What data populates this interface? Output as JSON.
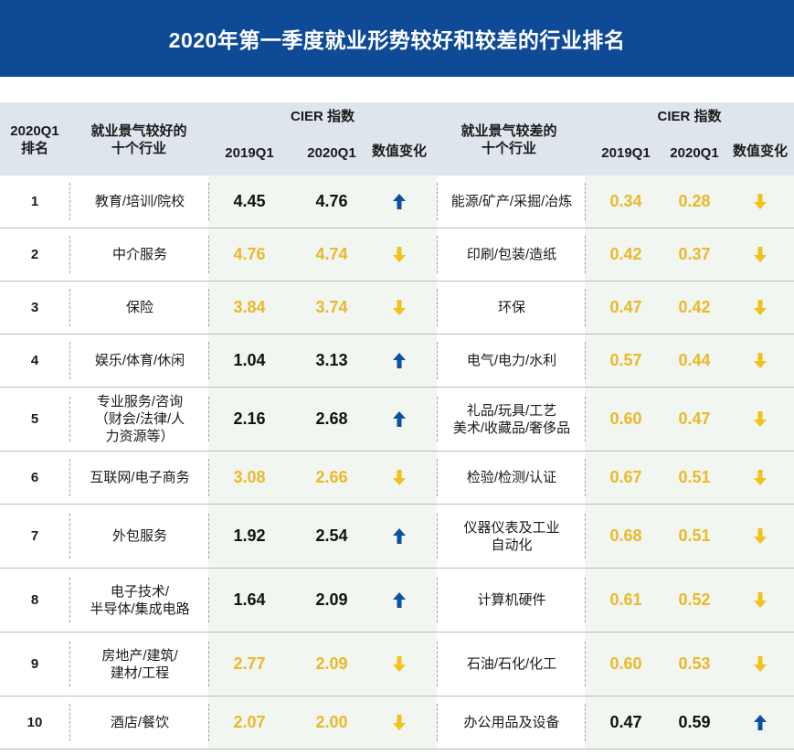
{
  "title": "2020年第一季度就业形势较好和较差的行业排名",
  "colors": {
    "header_blue": "#0f4a96",
    "gold": "#e9b92a",
    "dark_blue_arrow": "#0d4fa0",
    "yellow_arrow": "#f0c21c"
  },
  "header": {
    "rank_line1": "2020Q1",
    "rank_line2": "排名",
    "good_line1": "就业景气较好的",
    "good_line2": "十个行业",
    "cier_good": "CIER 指数",
    "y2019": "2019Q1",
    "y2020": "2020Q1",
    "change": "数值变化",
    "bad_line1": "就业景气较差的",
    "bad_line2": "十个行业",
    "cier_bad": "CIER 指数",
    "y2019b": "2019Q1",
    "y2020b": "2020Q1",
    "changeb": "数值变化"
  },
  "rows": [
    {
      "rank": "1",
      "good_lines": [
        "教育/培训/院校"
      ],
      "g19": "4.45",
      "g20": "4.76",
      "g_dir": "up",
      "g_gold": false,
      "bad_lines": [
        "能源/矿产/采掘/冶炼"
      ],
      "b19": "0.34",
      "b20": "0.28",
      "b_dir": "down",
      "b_gold": true
    },
    {
      "rank": "2",
      "good_lines": [
        "中介服务"
      ],
      "g19": "4.76",
      "g20": "4.74",
      "g_dir": "down",
      "g_gold": true,
      "bad_lines": [
        "印刷/包装/造纸"
      ],
      "b19": "0.42",
      "b20": "0.37",
      "b_dir": "down",
      "b_gold": true
    },
    {
      "rank": "3",
      "good_lines": [
        "保险"
      ],
      "g19": "3.84",
      "g20": "3.74",
      "g_dir": "down",
      "g_gold": true,
      "bad_lines": [
        "环保"
      ],
      "b19": "0.47",
      "b20": "0.42",
      "b_dir": "down",
      "b_gold": true
    },
    {
      "rank": "4",
      "good_lines": [
        "娱乐/体育/休闲"
      ],
      "g19": "1.04",
      "g20": "3.13",
      "g_dir": "up",
      "g_gold": false,
      "bad_lines": [
        "电气/电力/水利"
      ],
      "b19": "0.57",
      "b20": "0.44",
      "b_dir": "down",
      "b_gold": true
    },
    {
      "rank": "5",
      "good_lines": [
        "专业服务/咨询",
        "（财会/法律/人",
        "力资源等）"
      ],
      "g19": "2.16",
      "g20": "2.68",
      "g_dir": "up",
      "g_gold": false,
      "bad_lines": [
        "礼品/玩具/工艺",
        "美术/收藏品/奢侈品"
      ],
      "b19": "0.60",
      "b20": "0.47",
      "b_dir": "down",
      "b_gold": true
    },
    {
      "rank": "6",
      "good_lines": [
        "互联网/电子商务"
      ],
      "g19": "3.08",
      "g20": "2.66",
      "g_dir": "down",
      "g_gold": true,
      "bad_lines": [
        "检验/检测/认证"
      ],
      "b19": "0.67",
      "b20": "0.51",
      "b_dir": "down",
      "b_gold": true
    },
    {
      "rank": "7",
      "good_lines": [
        "外包服务"
      ],
      "g19": "1.92",
      "g20": "2.54",
      "g_dir": "up",
      "g_gold": false,
      "bad_lines": [
        "仪器仪表及工业",
        "自动化"
      ],
      "b19": "0.68",
      "b20": "0.51",
      "b_dir": "down",
      "b_gold": true
    },
    {
      "rank": "8",
      "good_lines": [
        "电子技术/",
        "半导体/集成电路"
      ],
      "g19": "1.64",
      "g20": "2.09",
      "g_dir": "up",
      "g_gold": false,
      "bad_lines": [
        "计算机硬件"
      ],
      "b19": "0.61",
      "b20": "0.52",
      "b_dir": "down",
      "b_gold": true
    },
    {
      "rank": "9",
      "good_lines": [
        "房地产/建筑/",
        "建材/工程"
      ],
      "g19": "2.77",
      "g20": "2.09",
      "g_dir": "down",
      "g_gold": true,
      "bad_lines": [
        "石油/石化/化工"
      ],
      "b19": "0.60",
      "b20": "0.53",
      "b_dir": "down",
      "b_gold": true
    },
    {
      "rank": "10",
      "good_lines": [
        "酒店/餐饮"
      ],
      "g19": "2.07",
      "g20": "2.00",
      "g_dir": "down",
      "g_gold": true,
      "bad_lines": [
        "办公用品及设备"
      ],
      "b19": "0.47",
      "b20": "0.59",
      "b_dir": "up",
      "b_gold": false
    }
  ]
}
